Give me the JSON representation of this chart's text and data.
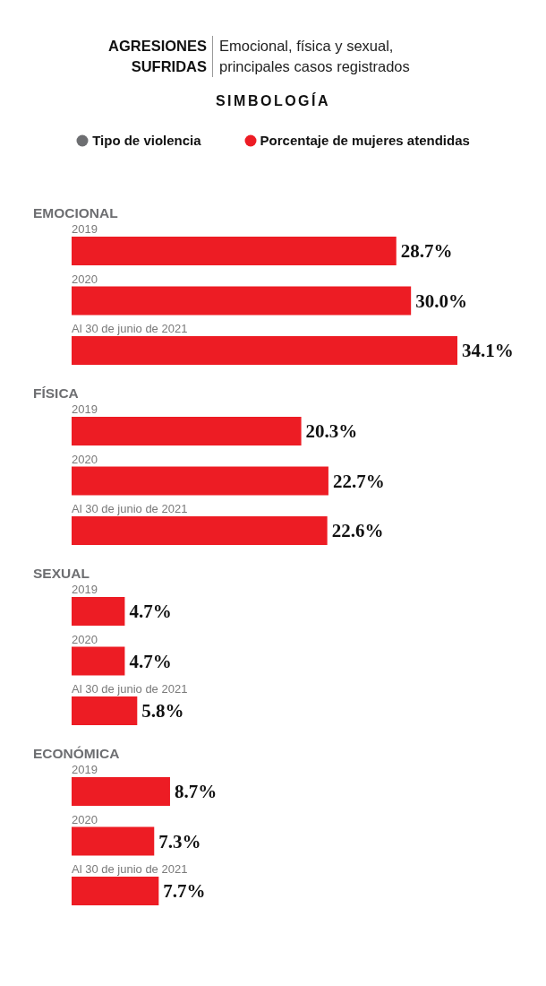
{
  "chart_data": [
    {
      "type": "other",
      "title": "AGRESIONES SUFRIDAS",
      "subtitle": "Emocional, física y sexual, principales casos registrados"
    },
    {
      "type": "bar",
      "orientation": "horizontal",
      "title": "EMOCIONAL",
      "legend_title": "SIMBOLOGÍA",
      "legend": "top",
      "annotations": [
        "Tipo de violencia"
      ],
      "categories": [
        "2019",
        "2020",
        "Al 30 de junio de 2021"
      ],
      "series": [
        {
          "name": "Porcentaje de mujeres atendidas",
          "color": "#ed1c24",
          "values": [
            28.7,
            30.0,
            34.1
          ],
          "value_labels": [
            "28.7%",
            "30.0%",
            "34.1%"
          ]
        }
      ]
    },
    {
      "type": "bar",
      "orientation": "horizontal",
      "title": "FÍSICA",
      "categories": [
        "2019",
        "2020",
        "Al 30 de junio de 2021"
      ],
      "series": [
        {
          "color": "#ed1c24",
          "values": [
            20.3,
            22.7,
            22.6
          ],
          "value_labels": [
            "20.3%",
            "22.7%",
            "22.6%"
          ]
        }
      ]
    },
    {
      "type": "bar",
      "orientation": "horizontal",
      "title": "SEXUAL",
      "categories": [
        "2019",
        "2020",
        "Al 30 de junio de 2021"
      ],
      "series": [
        {
          "color": "#ed1c24",
          "values": [
            4.7,
            4.7,
            5.8
          ],
          "value_labels": [
            "4.7%",
            "4.7%",
            "5.8%"
          ]
        }
      ]
    },
    {
      "type": "bar",
      "orientation": "horizontal",
      "title": "ECONÓMICA",
      "categories": [
        "2019",
        "2020",
        "Al 30 de junio de 2021"
      ],
      "series": [
        {
          "color": "#ed1c24",
          "values": [
            8.7,
            7.3,
            7.7
          ],
          "value_labels": [
            "8.7%",
            "7.3%",
            "7.7%"
          ]
        }
      ]
    }
  ]
}
